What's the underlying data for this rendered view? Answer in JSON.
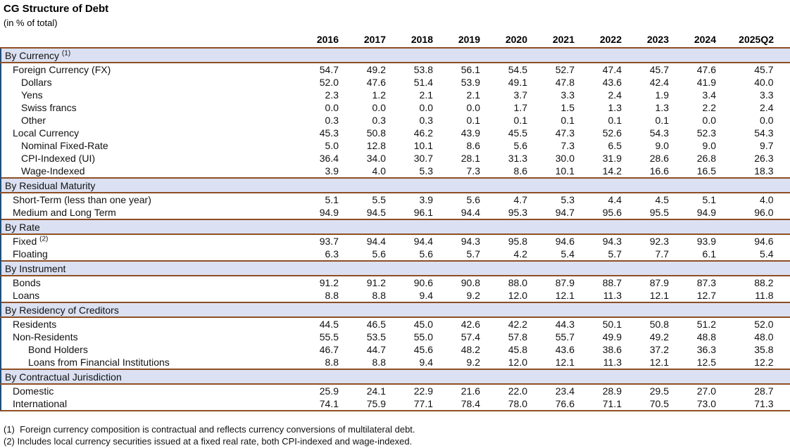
{
  "title": "CG Structure of Debt",
  "subtitle": "(in % of total)",
  "columns": [
    "2016",
    "2017",
    "2018",
    "2019",
    "2020",
    "2021",
    "2022",
    "2023",
    "2024",
    "2025Q2"
  ],
  "sections": [
    {
      "header": "By Currency",
      "sup": "(1)",
      "rows": [
        {
          "label": "Foreign Currency (FX)",
          "indent": 1,
          "values": [
            "54.7",
            "49.2",
            "53.8",
            "56.1",
            "54.5",
            "52.7",
            "47.4",
            "45.7",
            "47.6",
            "45.7"
          ]
        },
        {
          "label": "Dollars",
          "indent": 2,
          "values": [
            "52.0",
            "47.6",
            "51.4",
            "53.9",
            "49.1",
            "47.8",
            "43.6",
            "42.4",
            "41.9",
            "40.0"
          ]
        },
        {
          "label": "Yens",
          "indent": 2,
          "values": [
            "2.3",
            "1.2",
            "2.1",
            "2.1",
            "3.7",
            "3.3",
            "2.4",
            "1.9",
            "3.4",
            "3.3"
          ]
        },
        {
          "label": "Swiss francs",
          "indent": 2,
          "values": [
            "0.0",
            "0.0",
            "0.0",
            "0.0",
            "1.7",
            "1.5",
            "1.3",
            "1.3",
            "2.2",
            "2.4"
          ]
        },
        {
          "label": "Other",
          "indent": 2,
          "values": [
            "0.3",
            "0.3",
            "0.3",
            "0.1",
            "0.1",
            "0.1",
            "0.1",
            "0.1",
            "0.0",
            "0.0"
          ]
        },
        {
          "label": "Local Currency",
          "indent": 1,
          "values": [
            "45.3",
            "50.8",
            "46.2",
            "43.9",
            "45.5",
            "47.3",
            "52.6",
            "54.3",
            "52.3",
            "54.3"
          ]
        },
        {
          "label": "Nominal Fixed-Rate",
          "indent": 2,
          "values": [
            "5.0",
            "12.8",
            "10.1",
            "8.6",
            "5.6",
            "7.3",
            "6.5",
            "9.0",
            "9.0",
            "9.7"
          ]
        },
        {
          "label": "CPI-Indexed (UI)",
          "indent": 2,
          "values": [
            "36.4",
            "34.0",
            "30.7",
            "28.1",
            "31.3",
            "30.0",
            "31.9",
            "28.6",
            "26.8",
            "26.3"
          ]
        },
        {
          "label": "Wage-Indexed",
          "indent": 2,
          "values": [
            "3.9",
            "4.0",
            "5.3",
            "7.3",
            "8.6",
            "10.1",
            "14.2",
            "16.6",
            "16.5",
            "18.3"
          ]
        }
      ]
    },
    {
      "header": "By Residual Maturity",
      "rows": [
        {
          "label": "Short-Term (less than one year)",
          "indent": 1,
          "values": [
            "5.1",
            "5.5",
            "3.9",
            "5.6",
            "4.7",
            "5.3",
            "4.4",
            "4.5",
            "5.1",
            "4.0"
          ]
        },
        {
          "label": "Medium and Long Term",
          "indent": 1,
          "values": [
            "94.9",
            "94.5",
            "96.1",
            "94.4",
            "95.3",
            "94.7",
            "95.6",
            "95.5",
            "94.9",
            "96.0"
          ]
        }
      ]
    },
    {
      "header": "By Rate",
      "rows": [
        {
          "label": "Fixed",
          "sup": "(2)",
          "indent": 1,
          "values": [
            "93.7",
            "94.4",
            "94.4",
            "94.3",
            "95.8",
            "94.6",
            "94.3",
            "92.3",
            "93.9",
            "94.6"
          ]
        },
        {
          "label": "Floating",
          "indent": 1,
          "values": [
            "6.3",
            "5.6",
            "5.6",
            "5.7",
            "4.2",
            "5.4",
            "5.7",
            "7.7",
            "6.1",
            "5.4"
          ]
        }
      ]
    },
    {
      "header": "By Instrument",
      "rows": [
        {
          "label": "Bonds",
          "indent": 1,
          "values": [
            "91.2",
            "91.2",
            "90.6",
            "90.8",
            "88.0",
            "87.9",
            "88.7",
            "87.9",
            "87.3",
            "88.2"
          ]
        },
        {
          "label": "Loans",
          "indent": 1,
          "values": [
            "8.8",
            "8.8",
            "9.4",
            "9.2",
            "12.0",
            "12.1",
            "11.3",
            "12.1",
            "12.7",
            "11.8"
          ]
        }
      ]
    },
    {
      "header": "By Residency of Creditors",
      "rows": [
        {
          "label": "Residents",
          "indent": 1,
          "values": [
            "44.5",
            "46.5",
            "45.0",
            "42.6",
            "42.2",
            "44.3",
            "50.1",
            "50.8",
            "51.2",
            "52.0"
          ]
        },
        {
          "label": "Non-Residents",
          "indent": 1,
          "values": [
            "55.5",
            "53.5",
            "55.0",
            "57.4",
            "57.8",
            "55.7",
            "49.9",
            "49.2",
            "48.8",
            "48.0"
          ]
        },
        {
          "label": "Bond Holders",
          "indent": 3,
          "values": [
            "46.7",
            "44.7",
            "45.6",
            "48.2",
            "45.8",
            "43.6",
            "38.6",
            "37.2",
            "36.3",
            "35.8"
          ]
        },
        {
          "label": "Loans from Financial Institutions",
          "indent": 3,
          "values": [
            "8.8",
            "8.8",
            "9.4",
            "9.2",
            "12.0",
            "12.1",
            "11.3",
            "12.1",
            "12.5",
            "12.2"
          ]
        }
      ]
    },
    {
      "header": "By Contractual Jurisdiction",
      "rows": [
        {
          "label": "Domestic",
          "indent": 1,
          "values": [
            "25.9",
            "24.1",
            "22.9",
            "21.6",
            "22.0",
            "23.4",
            "28.9",
            "29.5",
            "27.0",
            "28.7"
          ]
        },
        {
          "label": "International",
          "indent": 1,
          "values": [
            "74.1",
            "75.9",
            "77.1",
            "78.4",
            "78.0",
            "76.6",
            "71.1",
            "70.5",
            "73.0",
            "71.3"
          ]
        }
      ]
    }
  ],
  "footnotes": [
    "(1)  Foreign currency composition is contractual and reflects currency conversions of multilateral debt.",
    "(2) Includes local currency securities issued at a fixed real rate, both CPI-indexed and wage-indexed."
  ],
  "colors": {
    "section_band_bg": "#dbe1f2",
    "rule_brown": "#8e4e24",
    "rule_navy": "#1f4e79"
  }
}
